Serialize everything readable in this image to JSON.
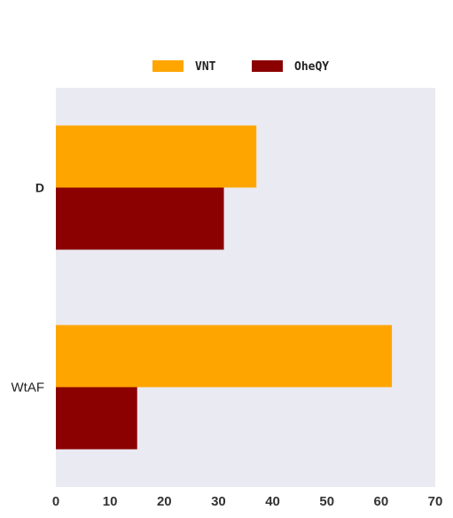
{
  "chart_data": {
    "type": "bar",
    "orientation": "horizontal",
    "categories": [
      "D",
      "WtAF"
    ],
    "series": [
      {
        "name": "VNT",
        "values": [
          37,
          62
        ],
        "color": "#FFA500"
      },
      {
        "name": "OheQY",
        "values": [
          31,
          15
        ],
        "color": "#8B0000"
      }
    ],
    "xlim": [
      0,
      70
    ],
    "xticks": [
      0,
      10,
      20,
      30,
      40,
      50,
      60,
      70
    ],
    "title": "",
    "xlabel": "",
    "ylabel": "",
    "grid": false,
    "legend_position": "top-center",
    "plot_background": "#EAEAF2"
  }
}
